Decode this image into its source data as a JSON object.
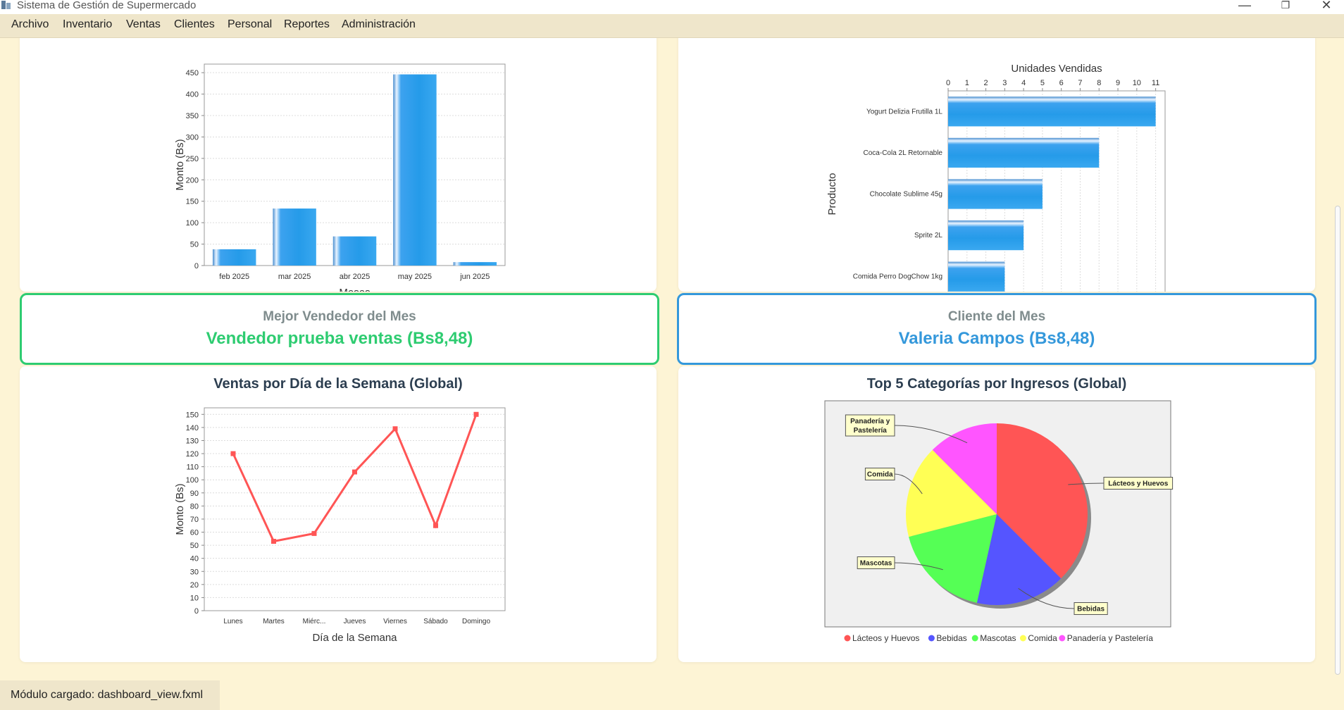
{
  "window": {
    "title": "Sistema de Gestión de Supermercado"
  },
  "menu": [
    "Archivo",
    "Inventario",
    "Ventas",
    "Clientes",
    "Personal",
    "Reportes",
    "Administración"
  ],
  "status": "Módulo cargado: dashboard_view.fxml",
  "best_seller": {
    "title": "Mejor Vendedor del Mes",
    "value": "Vendedor prueba ventas (Bs8,48)",
    "color": "#2ecc71"
  },
  "best_client": {
    "title": "Cliente del Mes",
    "value": "Valeria Campos (Bs8,48)",
    "color": "#3498db"
  },
  "chart_data": [
    {
      "type": "bar",
      "title": "",
      "xlabel": "Meses",
      "ylabel": "Monto (Bs)",
      "categories": [
        "feb 2025",
        "mar 2025",
        "abr 2025",
        "may 2025",
        "jun 2025"
      ],
      "values": [
        38,
        133,
        68,
        446,
        8
      ],
      "ylim": [
        0,
        470
      ],
      "yticks": [
        0,
        50,
        100,
        150,
        200,
        250,
        300,
        350,
        400,
        450
      ]
    },
    {
      "type": "bar",
      "orientation": "horizontal",
      "title": "",
      "xlabel": "Unidades Vendidas",
      "ylabel": "Producto",
      "categories": [
        "Yogurt Delizia Frutilla 1L",
        "Coca-Cola 2L Retornable",
        "Chocolate Sublime 45g",
        "Sprite 2L",
        "Comida Perro DogChow 1kg"
      ],
      "values": [
        11,
        8,
        5,
        4,
        3
      ],
      "xlim": [
        0,
        11.5
      ],
      "xticks": [
        0,
        1,
        2,
        3,
        4,
        5,
        6,
        7,
        8,
        9,
        10,
        11
      ]
    },
    {
      "type": "line",
      "title": "Ventas por Día de la Semana (Global)",
      "xlabel": "Día de la Semana",
      "ylabel": "Monto (Bs)",
      "categories": [
        "Lunes",
        "Martes",
        "Miérc...",
        "Jueves",
        "Viernes",
        "Sábado",
        "Domingo"
      ],
      "values": [
        120,
        53,
        59,
        106,
        139,
        65,
        150
      ],
      "ylim": [
        0,
        155
      ],
      "yticks": [
        0,
        10,
        20,
        30,
        40,
        50,
        60,
        70,
        80,
        90,
        100,
        110,
        120,
        130,
        140,
        150
      ],
      "color": "#ff5555"
    },
    {
      "type": "pie",
      "title": "Top 5 Categorías por Ingresos (Global)",
      "legend_placement": "bottom",
      "labels": [
        "Lácteos y Huevos",
        "Bebidas",
        "Mascotas",
        "Comida",
        "Panadería y Pastelería"
      ],
      "values": [
        37.5,
        16.0,
        17.5,
        16.5,
        12.5
      ],
      "colors": [
        "#ff5555",
        "#5555ff",
        "#55ff55",
        "#ffff55",
        "#ff55ff"
      ]
    }
  ]
}
